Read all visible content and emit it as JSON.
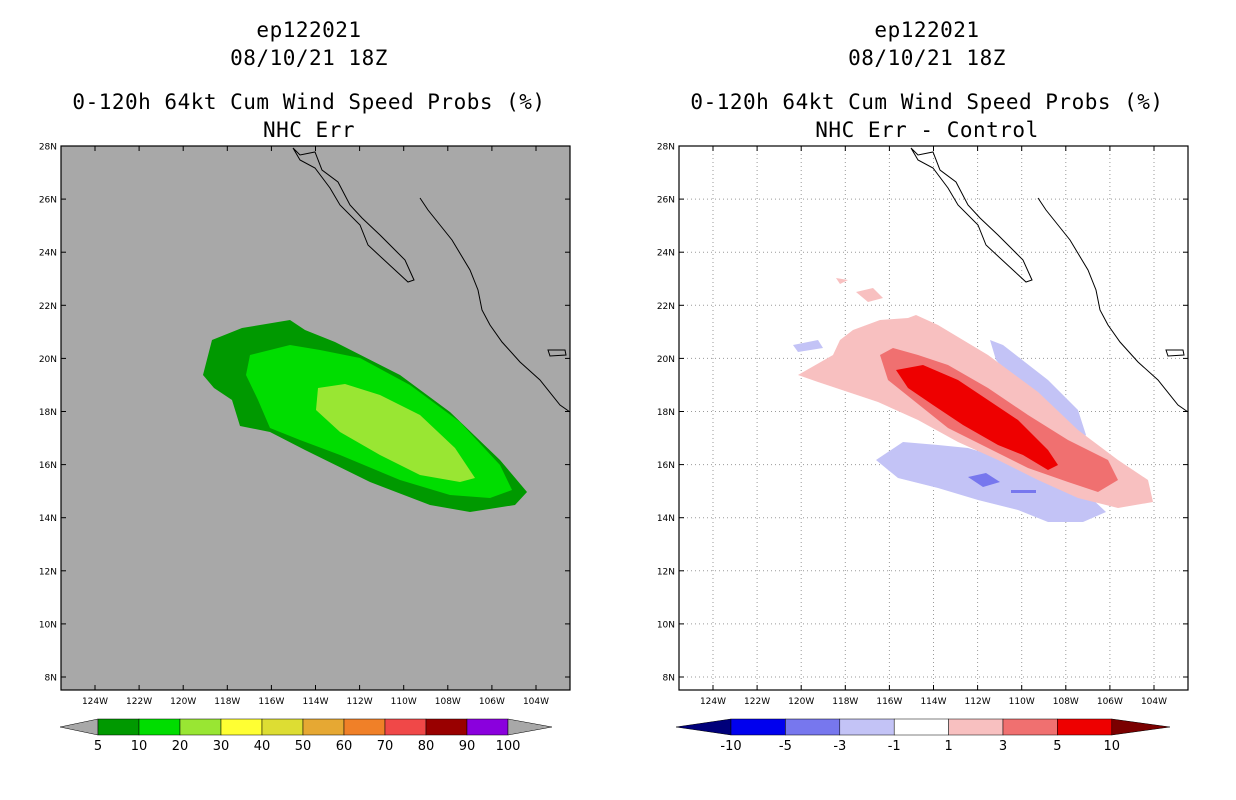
{
  "left": {
    "title_line1": "ep122021",
    "title_line2": "08/10/21 18Z",
    "title_line3": "0-120h 64kt Cum Wind Speed Probs (%)",
    "title_line4": "NHC Err",
    "background_color": "#a8a8a8",
    "colorbar": {
      "labels": [
        "5",
        "10",
        "20",
        "30",
        "40",
        "50",
        "60",
        "70",
        "80",
        "90",
        "100"
      ],
      "colors": [
        "#009900",
        "#00dd00",
        "#99e633",
        "#ffff33",
        "#dddd33",
        "#e6a833",
        "#f08028",
        "#f04848",
        "#990000",
        "#8a00dd"
      ],
      "end_color": "#a8a8a8"
    }
  },
  "right": {
    "title_line1": "ep122021",
    "title_line2": "08/10/21 18Z",
    "title_line3": "0-120h 64kt Cum Wind Speed Probs (%)",
    "title_line4": "NHC Err - Control",
    "background_color": "#ffffff",
    "colorbar": {
      "labels": [
        "-10",
        "-5",
        "-3",
        "-1",
        "1",
        "3",
        "5",
        "10"
      ],
      "colors": [
        "#0000ee",
        "#7777ee",
        "#c3c3f6",
        "#ffffff",
        "#f8c0c0",
        "#f07070",
        "#ee0000"
      ],
      "left_end_color": "#00007a",
      "right_end_color": "#7a0000"
    }
  },
  "axes": {
    "lat_labels": [
      "28N",
      "26N",
      "24N",
      "22N",
      "20N",
      "18N",
      "16N",
      "14N",
      "12N",
      "10N",
      "8N"
    ],
    "lon_labels": [
      "124W",
      "122W",
      "120W",
      "118W",
      "116W",
      "114W",
      "112W",
      "110W",
      "108W",
      "106W",
      "104W"
    ]
  }
}
